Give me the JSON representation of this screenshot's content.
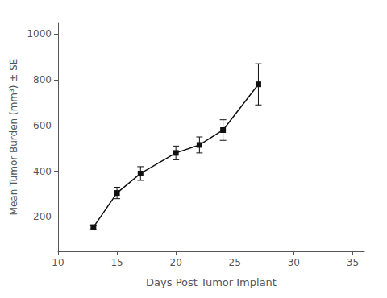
{
  "chart_data": {
    "type": "line",
    "x": [
      13,
      15,
      17,
      20,
      22,
      24,
      27
    ],
    "values": [
      155,
      305,
      390,
      480,
      515,
      580,
      780
    ],
    "yerr": [
      10,
      25,
      30,
      30,
      35,
      45,
      90
    ],
    "xlabel": "Days Post Tumor Implant",
    "ylabel": "Mean Tumor Burden (mm³) ± SE",
    "xlim": [
      10,
      36
    ],
    "ylim": [
      50,
      1050
    ],
    "xticks": [
      10,
      15,
      20,
      25,
      30,
      35
    ],
    "yticks": [
      200,
      400,
      600,
      800,
      1000
    ],
    "color": "#111111",
    "marker": "square",
    "grid": false
  }
}
